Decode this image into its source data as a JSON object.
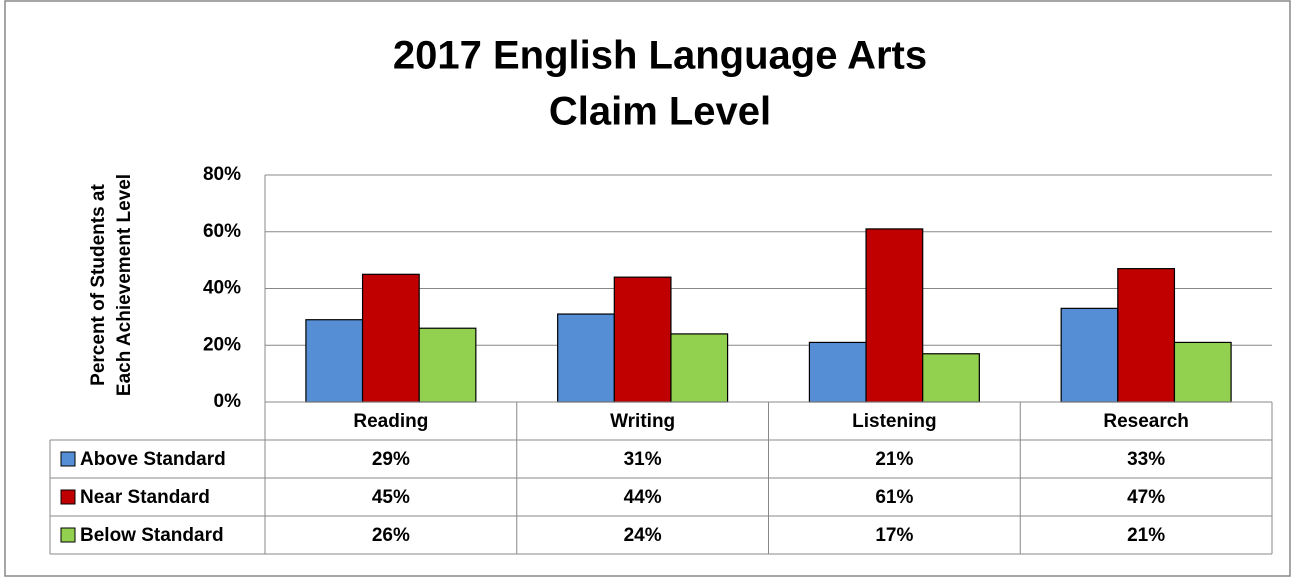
{
  "chart_data": {
    "type": "bar",
    "title": [
      "2017 English Language Arts",
      "Claim Level"
    ],
    "y_label": [
      "Percent of Students at",
      "Each Achievement Level"
    ],
    "categories": [
      "Reading",
      "Writing",
      "Listening",
      "Research"
    ],
    "series": [
      {
        "name": "Above Standard",
        "color": "#558ed5",
        "values": [
          29,
          31,
          21,
          33
        ],
        "value_labels": [
          "29%",
          "31%",
          "21%",
          "33%"
        ]
      },
      {
        "name": "Near Standard",
        "color": "#c00000",
        "values": [
          45,
          44,
          61,
          47
        ],
        "value_labels": [
          "45%",
          "44%",
          "61%",
          "47%"
        ]
      },
      {
        "name": "Below Standard",
        "color": "#92d050",
        "values": [
          26,
          24,
          17,
          21
        ],
        "value_labels": [
          "26%",
          "24%",
          "17%",
          "21%"
        ]
      }
    ],
    "ylim": [
      0,
      80
    ],
    "yticks": [
      {
        "value": 0,
        "label": "0%"
      },
      {
        "value": 20,
        "label": "20%"
      },
      {
        "value": 40,
        "label": "40%"
      },
      {
        "value": 60,
        "label": "60%"
      },
      {
        "value": 80,
        "label": "80%"
      }
    ],
    "grid": true,
    "data_table": true
  }
}
